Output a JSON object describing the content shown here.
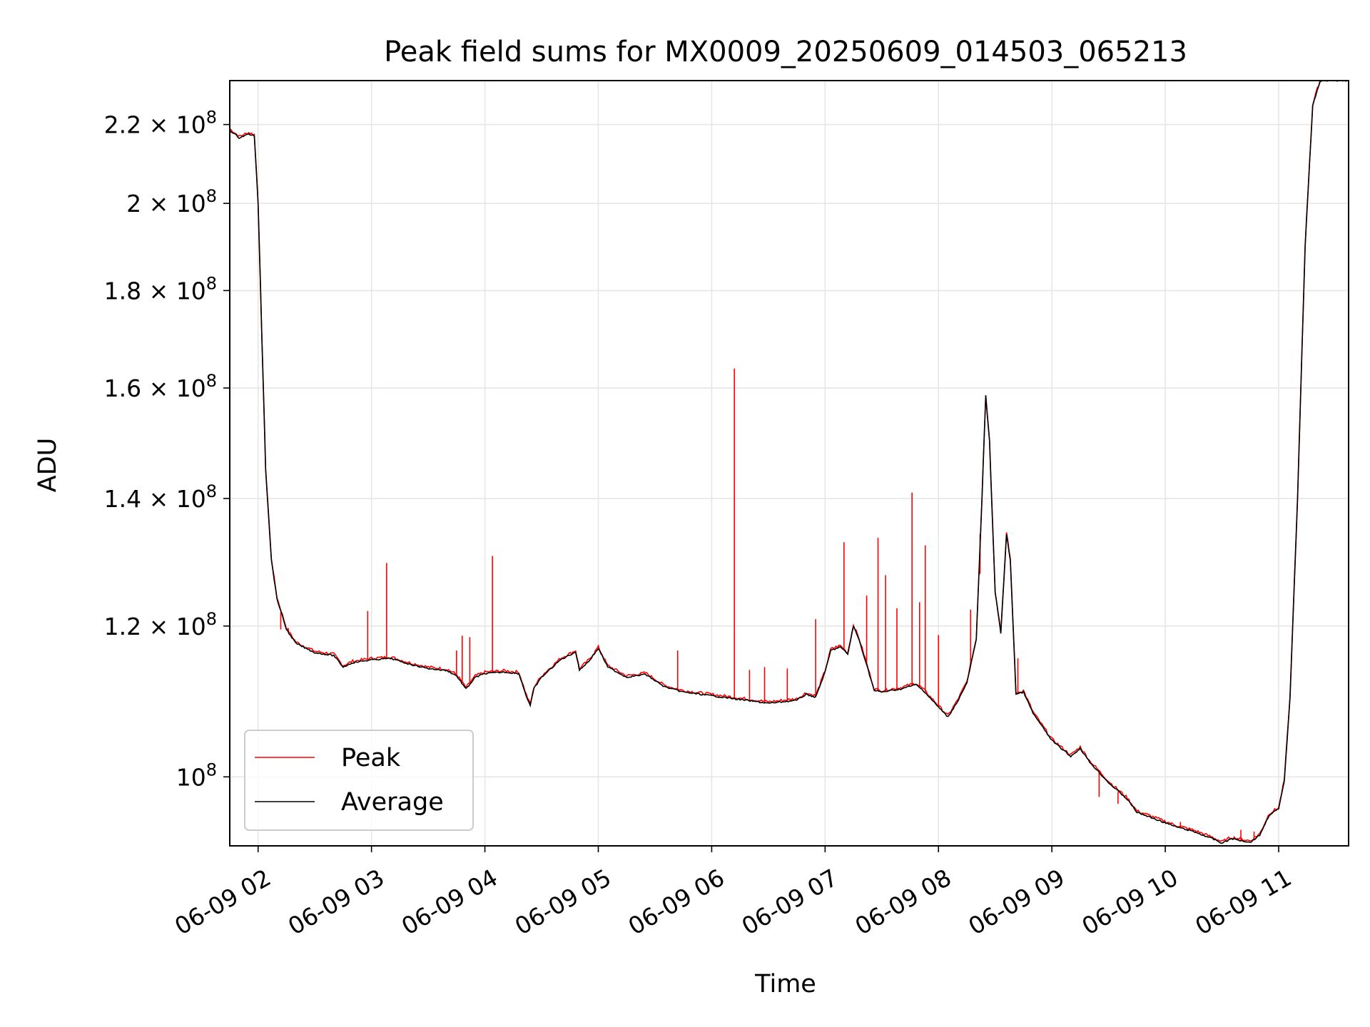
{
  "chart_data": {
    "type": "line",
    "title": "Peak field sums for MX0009_20250609_014503_065213",
    "xlabel": "Time",
    "ylabel": "ADU",
    "y_scale": "log",
    "ylim": [
      92000000,
      232000000
    ],
    "xlim": [
      "06-09 01:45",
      "06-09 11:37"
    ],
    "grid": true,
    "legend_position": "lower-left",
    "x_ticks": [
      {
        "t": "06-09 02:00",
        "label": "06-09 02"
      },
      {
        "t": "06-09 03:00",
        "label": "06-09 03"
      },
      {
        "t": "06-09 04:00",
        "label": "06-09 04"
      },
      {
        "t": "06-09 05:00",
        "label": "06-09 05"
      },
      {
        "t": "06-09 06:00",
        "label": "06-09 06"
      },
      {
        "t": "06-09 07:00",
        "label": "06-09 07"
      },
      {
        "t": "06-09 08:00",
        "label": "06-09 08"
      },
      {
        "t": "06-09 09:00",
        "label": "06-09 09"
      },
      {
        "t": "06-09 10:00",
        "label": "06-09 10"
      },
      {
        "t": "06-09 11:00",
        "label": "06-09 11"
      }
    ],
    "y_ticks": [
      {
        "v": 100000000,
        "mant": "",
        "exp": "8"
      },
      {
        "v": 120000000,
        "mant": "1.2",
        "exp": "8"
      },
      {
        "v": 140000000,
        "mant": "1.4",
        "exp": "8"
      },
      {
        "v": 160000000,
        "mant": "1.6",
        "exp": "8"
      },
      {
        "v": 180000000,
        "mant": "1.8",
        "exp": "8"
      },
      {
        "v": 200000000,
        "mant": "2",
        "exp": "8"
      },
      {
        "v": 220000000,
        "mant": "2.2",
        "exp": "8"
      }
    ],
    "series": [
      {
        "name": "Average",
        "color": "#000000",
        "points": [
          [
            "06-09 01:45",
            218500000
          ],
          [
            "06-09 01:50",
            216500000
          ],
          [
            "06-09 01:55",
            217500000
          ],
          [
            "06-09 01:58",
            217000000
          ],
          [
            "06-09 02:00",
            200000000
          ],
          [
            "06-09 02:02",
            170000000
          ],
          [
            "06-09 02:04",
            145000000
          ],
          [
            "06-09 02:07",
            130000000
          ],
          [
            "06-09 02:10",
            124000000
          ],
          [
            "06-09 02:15",
            119500000
          ],
          [
            "06-09 02:20",
            117500000
          ],
          [
            "06-09 02:30",
            116200000
          ],
          [
            "06-09 02:40",
            115800000
          ],
          [
            "06-09 02:45",
            114200000
          ],
          [
            "06-09 02:50",
            114800000
          ],
          [
            "06-09 03:00",
            115200000
          ],
          [
            "06-09 03:10",
            115400000
          ],
          [
            "06-09 03:20",
            114600000
          ],
          [
            "06-09 03:30",
            114000000
          ],
          [
            "06-09 03:40",
            113700000
          ],
          [
            "06-09 03:45",
            113000000
          ],
          [
            "06-09 03:50",
            111200000
          ],
          [
            "06-09 03:55",
            112800000
          ],
          [
            "06-09 04:00",
            113300000
          ],
          [
            "06-09 04:10",
            113500000
          ],
          [
            "06-09 04:18",
            113300000
          ],
          [
            "06-09 04:22",
            110200000
          ],
          [
            "06-09 04:24",
            109000000
          ],
          [
            "06-09 04:26",
            111300000
          ],
          [
            "06-09 04:30",
            112800000
          ],
          [
            "06-09 04:40",
            115200000
          ],
          [
            "06-09 04:48",
            116300000
          ],
          [
            "06-09 04:50",
            113800000
          ],
          [
            "06-09 04:55",
            115000000
          ],
          [
            "06-09 05:00",
            116800000
          ],
          [
            "06-09 05:05",
            114200000
          ],
          [
            "06-09 05:15",
            112800000
          ],
          [
            "06-09 05:25",
            113200000
          ],
          [
            "06-09 05:35",
            111500000
          ],
          [
            "06-09 05:45",
            110800000
          ],
          [
            "06-09 06:00",
            110300000
          ],
          [
            "06-09 06:15",
            109800000
          ],
          [
            "06-09 06:30",
            109300000
          ],
          [
            "06-09 06:45",
            109700000
          ],
          [
            "06-09 06:50",
            110500000
          ],
          [
            "06-09 06:55",
            110100000
          ],
          [
            "06-09 07:00",
            113500000
          ],
          [
            "06-09 07:03",
            116500000
          ],
          [
            "06-09 07:08",
            117000000
          ],
          [
            "06-09 07:12",
            116000000
          ],
          [
            "06-09 07:15",
            120000000
          ],
          [
            "06-09 07:18",
            118000000
          ],
          [
            "06-09 07:22",
            114500000
          ],
          [
            "06-09 07:26",
            111000000
          ],
          [
            "06-09 07:30",
            110800000
          ],
          [
            "06-09 07:40",
            111200000
          ],
          [
            "06-09 07:48",
            111800000
          ],
          [
            "06-09 07:52",
            111000000
          ],
          [
            "06-09 08:00",
            108800000
          ],
          [
            "06-09 08:05",
            107500000
          ],
          [
            "06-09 08:10",
            109500000
          ],
          [
            "06-09 08:15",
            112000000
          ],
          [
            "06-09 08:20",
            118000000
          ],
          [
            "06-09 08:23",
            140000000
          ],
          [
            "06-09 08:25",
            158500000
          ],
          [
            "06-09 08:27",
            150000000
          ],
          [
            "06-09 08:30",
            125000000
          ],
          [
            "06-09 08:33",
            119000000
          ],
          [
            "06-09 08:36",
            134000000
          ],
          [
            "06-09 08:38",
            130000000
          ],
          [
            "06-09 08:41",
            110500000
          ],
          [
            "06-09 08:45",
            110800000
          ],
          [
            "06-09 08:50",
            108000000
          ],
          [
            "06-09 09:00",
            104500000
          ],
          [
            "06-09 09:10",
            102500000
          ],
          [
            "06-09 09:15",
            103500000
          ],
          [
            "06-09 09:20",
            101800000
          ],
          [
            "06-09 09:30",
            99300000
          ],
          [
            "06-09 09:40",
            97300000
          ],
          [
            "06-09 09:45",
            95800000
          ],
          [
            "06-09 09:55",
            95000000
          ],
          [
            "06-09 10:05",
            94200000
          ],
          [
            "06-09 10:15",
            93600000
          ],
          [
            "06-09 10:25",
            92800000
          ],
          [
            "06-09 10:30",
            92300000
          ],
          [
            "06-09 10:35",
            92800000
          ],
          [
            "06-09 10:45",
            92400000
          ],
          [
            "06-09 10:50",
            93200000
          ],
          [
            "06-09 10:55",
            95500000
          ],
          [
            "06-09 11:00",
            96200000
          ],
          [
            "06-09 11:03",
            99500000
          ],
          [
            "06-09 11:06",
            110000000
          ],
          [
            "06-09 11:10",
            140000000
          ],
          [
            "06-09 11:14",
            190000000
          ],
          [
            "06-09 11:18",
            225000000
          ],
          [
            "06-09 11:22",
            232000000
          ],
          [
            "06-09 11:37",
            232000000
          ]
        ]
      },
      {
        "name": "Peak",
        "color": "#ff0000",
        "spikes": [
          [
            "06-09 02:12",
            119500000
          ],
          [
            "06-09 02:16",
            119700000
          ],
          [
            "06-09 02:58",
            122200000
          ],
          [
            "06-09 03:08",
            129500000
          ],
          [
            "06-09 03:45",
            116500000
          ],
          [
            "06-09 03:48",
            118600000
          ],
          [
            "06-09 03:52",
            118400000
          ],
          [
            "06-09 04:04",
            130600000
          ],
          [
            "06-09 05:42",
            116500000
          ],
          [
            "06-09 06:12",
            163800000
          ],
          [
            "06-09 06:20",
            113800000
          ],
          [
            "06-09 06:28",
            114200000
          ],
          [
            "06-09 06:40",
            114000000
          ],
          [
            "06-09 06:55",
            121000000
          ],
          [
            "06-09 07:10",
            132800000
          ],
          [
            "06-09 07:22",
            124500000
          ],
          [
            "06-09 07:28",
            133500000
          ],
          [
            "06-09 07:32",
            127600000
          ],
          [
            "06-09 07:38",
            122600000
          ],
          [
            "06-09 07:46",
            141000000
          ],
          [
            "06-09 07:50",
            123500000
          ],
          [
            "06-09 07:53",
            132300000
          ],
          [
            "06-09 08:00",
            118700000
          ],
          [
            "06-09 08:17",
            122400000
          ],
          [
            "06-09 08:22",
            127800000
          ],
          [
            "06-09 08:42",
            115400000
          ],
          [
            "06-09 09:25",
            97600000
          ],
          [
            "06-09 09:35",
            96800000
          ],
          [
            "06-09 09:50",
            95500000
          ],
          [
            "06-09 10:08",
            94700000
          ],
          [
            "06-09 10:40",
            93800000
          ],
          [
            "06-09 10:47",
            93600000
          ]
        ]
      }
    ]
  }
}
